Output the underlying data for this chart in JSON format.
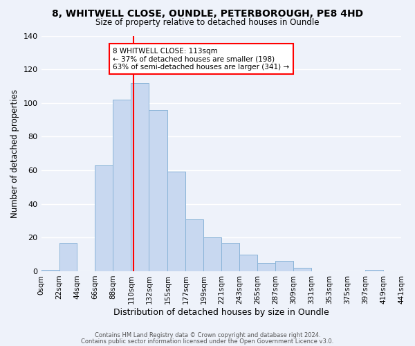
{
  "title": "8, WHITWELL CLOSE, OUNDLE, PETERBOROUGH, PE8 4HD",
  "subtitle": "Size of property relative to detached houses in Oundle",
  "xlabel": "Distribution of detached houses by size in Oundle",
  "ylabel": "Number of detached properties",
  "bar_color": "#c8d8f0",
  "bar_edge_color": "#8ab4d8",
  "vline_x": 113,
  "vline_color": "red",
  "annotation_title": "8 WHITWELL CLOSE: 113sqm",
  "annotation_line1": "← 37% of detached houses are smaller (198)",
  "annotation_line2": "63% of semi-detached houses are larger (341) →",
  "bin_edges": [
    0,
    22,
    44,
    66,
    88,
    110,
    132,
    155,
    177,
    199,
    221,
    243,
    265,
    287,
    309,
    331,
    353,
    375,
    397,
    419,
    441
  ],
  "bar_heights": [
    1,
    17,
    0,
    63,
    102,
    112,
    96,
    59,
    31,
    20,
    17,
    10,
    5,
    6,
    2,
    0,
    0,
    0,
    1,
    0
  ],
  "ylim": [
    0,
    140
  ],
  "yticks": [
    0,
    20,
    40,
    60,
    80,
    100,
    120,
    140
  ],
  "tick_labels": [
    "0sqm",
    "22sqm",
    "44sqm",
    "66sqm",
    "88sqm",
    "110sqm",
    "132sqm",
    "155sqm",
    "177sqm",
    "199sqm",
    "221sqm",
    "243sqm",
    "265sqm",
    "287sqm",
    "309sqm",
    "331sqm",
    "353sqm",
    "375sqm",
    "397sqm",
    "419sqm",
    "441sqm"
  ],
  "footer1": "Contains HM Land Registry data © Crown copyright and database right 2024.",
  "footer2": "Contains public sector information licensed under the Open Government Licence v3.0.",
  "background_color": "#eef2fa"
}
